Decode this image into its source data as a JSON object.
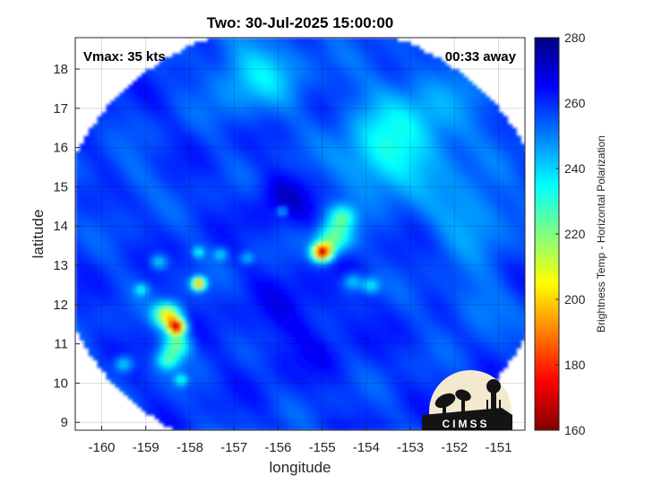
{
  "chart_data": {
    "type": "heatmap",
    "title": "Two: 30-Jul-2025 15:00:00",
    "xlabel": "longitude",
    "ylabel": "latitude",
    "xlim": [
      -160.6,
      -150.4
    ],
    "ylim": [
      8.8,
      18.8
    ],
    "xticks": [
      -160,
      -159,
      -158,
      -157,
      -156,
      -155,
      -154,
      -153,
      -152,
      -151
    ],
    "yticks": [
      9,
      10,
      11,
      12,
      13,
      14,
      15,
      16,
      17,
      18
    ],
    "grid": true,
    "annotations": {
      "top_left": "Vmax: 35 kts",
      "top_right": "00:33 away"
    },
    "colorbar": {
      "label": "Brightness Temp - Horizontal Polarization",
      "range": [
        160,
        280
      ],
      "ticks": [
        160,
        180,
        200,
        220,
        240,
        260,
        280
      ],
      "colormap": "jet"
    },
    "swath": {
      "center": [
        -155.45,
        13.6
      ],
      "radius_deg": 5.6
    },
    "background_value": 258,
    "field_features": [
      {
        "lon": -155.0,
        "lat": 13.35,
        "value": 175,
        "spread": 0.22
      },
      {
        "lon": -154.75,
        "lat": 13.7,
        "value": 222,
        "spread": 0.38
      },
      {
        "lon": -154.55,
        "lat": 14.25,
        "value": 232,
        "spread": 0.3
      },
      {
        "lon": -155.9,
        "lat": 14.4,
        "value": 236,
        "spread": 0.12
      },
      {
        "lon": -154.3,
        "lat": 12.6,
        "value": 238,
        "spread": 0.22
      },
      {
        "lon": -153.9,
        "lat": 12.5,
        "value": 236,
        "spread": 0.2
      },
      {
        "lon": -158.3,
        "lat": 11.45,
        "value": 180,
        "spread": 0.2
      },
      {
        "lon": -158.5,
        "lat": 11.75,
        "value": 205,
        "spread": 0.3
      },
      {
        "lon": -158.3,
        "lat": 11.0,
        "value": 225,
        "spread": 0.3
      },
      {
        "lon": -158.5,
        "lat": 10.6,
        "value": 230,
        "spread": 0.25
      },
      {
        "lon": -158.2,
        "lat": 10.1,
        "value": 236,
        "spread": 0.15
      },
      {
        "lon": -157.8,
        "lat": 12.55,
        "value": 195,
        "spread": 0.16
      },
      {
        "lon": -157.8,
        "lat": 13.35,
        "value": 236,
        "spread": 0.13
      },
      {
        "lon": -158.7,
        "lat": 13.1,
        "value": 238,
        "spread": 0.18
      },
      {
        "lon": -159.1,
        "lat": 12.4,
        "value": 238,
        "spread": 0.15
      },
      {
        "lon": -159.5,
        "lat": 10.5,
        "value": 236,
        "spread": 0.2
      },
      {
        "lon": -157.3,
        "lat": 13.3,
        "value": 240,
        "spread": 0.15
      },
      {
        "lon": -156.7,
        "lat": 13.2,
        "value": 242,
        "spread": 0.15
      },
      {
        "lon": -153.0,
        "lat": 16.5,
        "value": 240,
        "spread": 1.4
      },
      {
        "lon": -153.7,
        "lat": 15.6,
        "value": 244,
        "spread": 0.9
      },
      {
        "lon": -156.5,
        "lat": 17.9,
        "value": 240,
        "spread": 1.0
      },
      {
        "lon": -151.6,
        "lat": 14.2,
        "value": 244,
        "spread": 0.9
      },
      {
        "lon": -151.5,
        "lat": 12.0,
        "value": 249,
        "spread": 0.7
      },
      {
        "lon": -155.9,
        "lat": 14.7,
        "value": 268,
        "spread": 0.65
      },
      {
        "lon": -155.5,
        "lat": 11.6,
        "value": 264,
        "spread": 1.3
      },
      {
        "lon": -159.3,
        "lat": 15.2,
        "value": 253,
        "spread": 0.6
      }
    ],
    "logo": "CIMSS"
  },
  "icons": {
    "logo": "cimss-logo"
  }
}
